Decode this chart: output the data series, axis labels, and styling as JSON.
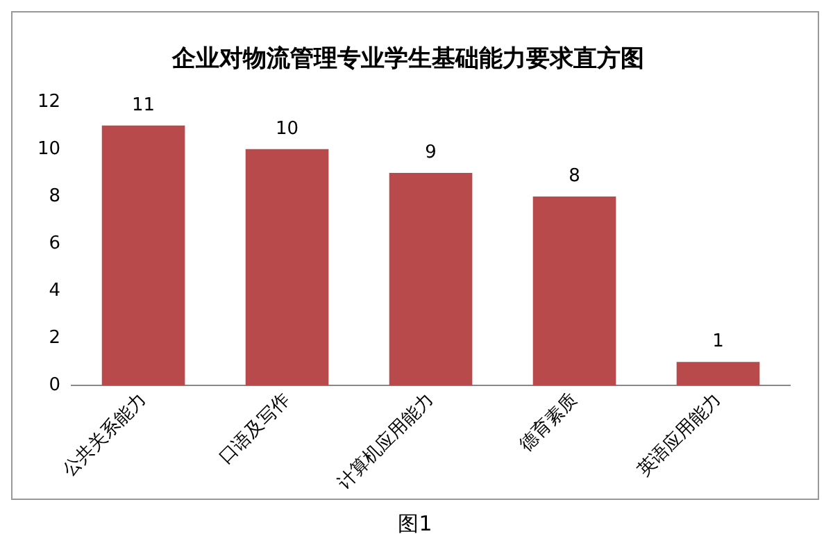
{
  "chart_data": {
    "type": "bar",
    "title": "企业对物流管理专业学生基础能力要求直方图",
    "categories": [
      "公共关系能力",
      "口语及写作",
      "计算机应用能力",
      "德育素质",
      "英语应用能力"
    ],
    "values": [
      11,
      10,
      9,
      8,
      1
    ],
    "color": "#b94a4c",
    "ylim": [
      0,
      12
    ],
    "yticks": [
      0,
      2,
      4,
      6,
      8,
      10,
      12
    ],
    "grid": false,
    "legend": false,
    "data_labels": true,
    "annotations": [
      "图1"
    ]
  }
}
